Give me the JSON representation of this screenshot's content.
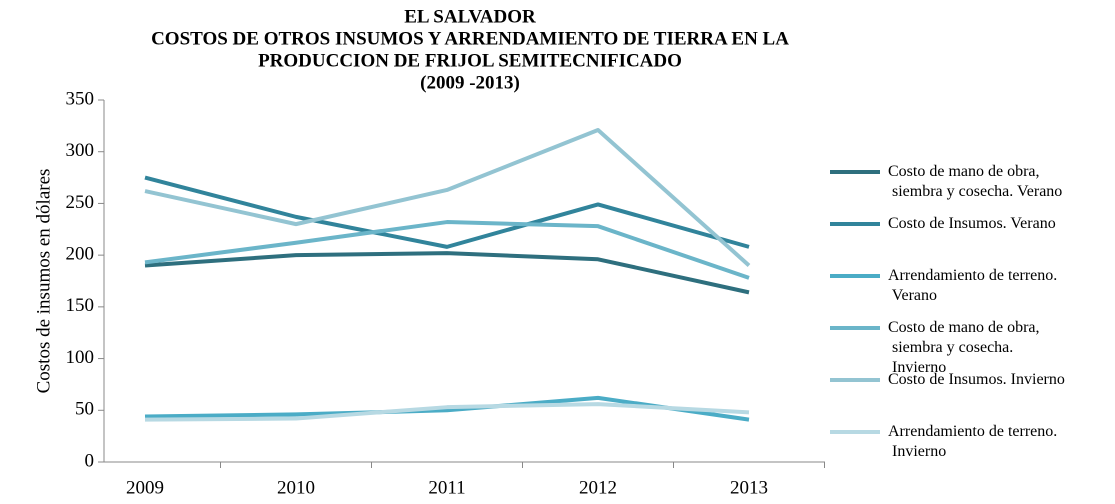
{
  "chart_data": {
    "type": "line",
    "title_lines": [
      "EL SALVADOR",
      "COSTOS DE OTROS INSUMOS Y ARRENDAMIENTO DE TIERRA EN LA",
      "PRODUCCION DE FRIJOL SEMITECNIFICADO",
      "(2009 -2013)"
    ],
    "y_label": "Costos de insumos en dólares",
    "categories": [
      "2009",
      "2010",
      "2011",
      "2012",
      "2013"
    ],
    "series": [
      {
        "name": "Costo de mano de obra, siembra y cosecha. Verano",
        "color": "#2e6f7e",
        "values": [
          190,
          200,
          202,
          196,
          164
        ]
      },
      {
        "name": "Costo de Insumos. Verano",
        "color": "#31849b",
        "values": [
          275,
          237,
          208,
          249,
          208
        ]
      },
      {
        "name": "Arrendamiento de terreno. Verano",
        "color": "#4bacc6",
        "values": [
          44,
          46,
          50,
          62,
          41
        ]
      },
      {
        "name": "Costo de mano de obra, siembra y cosecha. Invierno",
        "color": "#6bb5c9",
        "values": [
          193,
          212,
          232,
          228,
          178
        ]
      },
      {
        "name": "Costo de Insumos. Invierno",
        "color": "#93c4d2",
        "values": [
          262,
          230,
          263,
          321,
          190
        ]
      },
      {
        "name": "Arrendamiento de terreno. Invierno",
        "color": "#b7d9e3",
        "values": [
          41,
          42,
          53,
          56,
          48
        ]
      }
    ],
    "ylim": [
      0,
      350
    ],
    "yticks": [
      0,
      50,
      100,
      150,
      200,
      250,
      300,
      350
    ],
    "grid": false,
    "legend": "right"
  }
}
